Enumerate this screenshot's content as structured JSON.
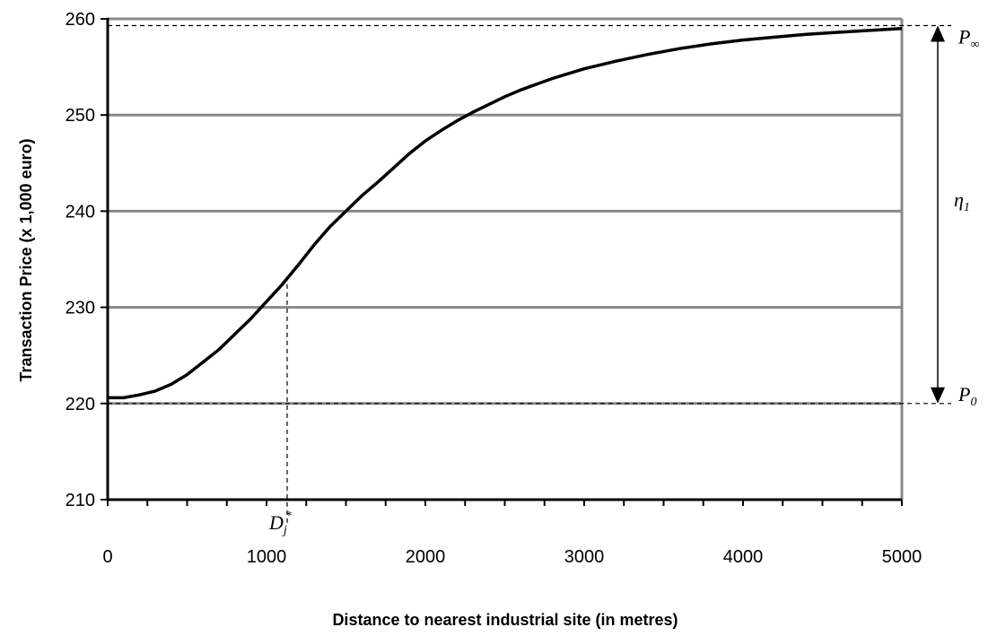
{
  "chart_data": {
    "type": "line",
    "title": "",
    "xlabel": "Distance to nearest industrial site (in metres)",
    "ylabel": "Transaction  Price (x 1,000 euro)",
    "xlim": [
      0,
      5000
    ],
    "ylim": [
      210,
      260
    ],
    "x_ticks": [
      "0",
      "1000",
      "2000",
      "3000",
      "4000",
      "5000"
    ],
    "y_ticks": [
      "210",
      "220",
      "230",
      "240",
      "250",
      "260"
    ],
    "grid": "horizontal",
    "series": [
      {
        "x": [
          0,
          100,
          200,
          300,
          400,
          500,
          600,
          700,
          800,
          900,
          1000,
          1100,
          1200,
          1300,
          1400,
          1500,
          1600,
          1700,
          1800,
          1900,
          2000,
          2100,
          2200,
          2300,
          2400,
          2500,
          2600,
          2700,
          2800,
          2900,
          3000,
          3200,
          3400,
          3600,
          3800,
          4000,
          4200,
          4400,
          4600,
          4800,
          5000
        ],
        "y": [
          220.6,
          220.6,
          220.9,
          221.3,
          222.0,
          223.0,
          224.3,
          225.6,
          227.2,
          228.8,
          230.6,
          232.4,
          234.4,
          236.5,
          238.4,
          240.0,
          241.6,
          243.0,
          244.5,
          246.0,
          247.3,
          248.4,
          249.4,
          250.3,
          251.1,
          251.9,
          252.6,
          253.2,
          253.8,
          254.3,
          254.8,
          255.6,
          256.3,
          256.9,
          257.4,
          257.8,
          258.1,
          258.4,
          258.6,
          258.8,
          259.0
        ]
      }
    ],
    "annotations": {
      "d_star": {
        "x": 1130,
        "y": 232.4,
        "label": "D",
        "sub": "j",
        "sup": "*"
      },
      "p_inf": {
        "y": 259.3,
        "label": "P",
        "sub": "∞"
      },
      "p_zero": {
        "y": 220.0,
        "label": "P",
        "sub": "0"
      },
      "eta": {
        "label": "η",
        "sub": "1"
      }
    }
  }
}
